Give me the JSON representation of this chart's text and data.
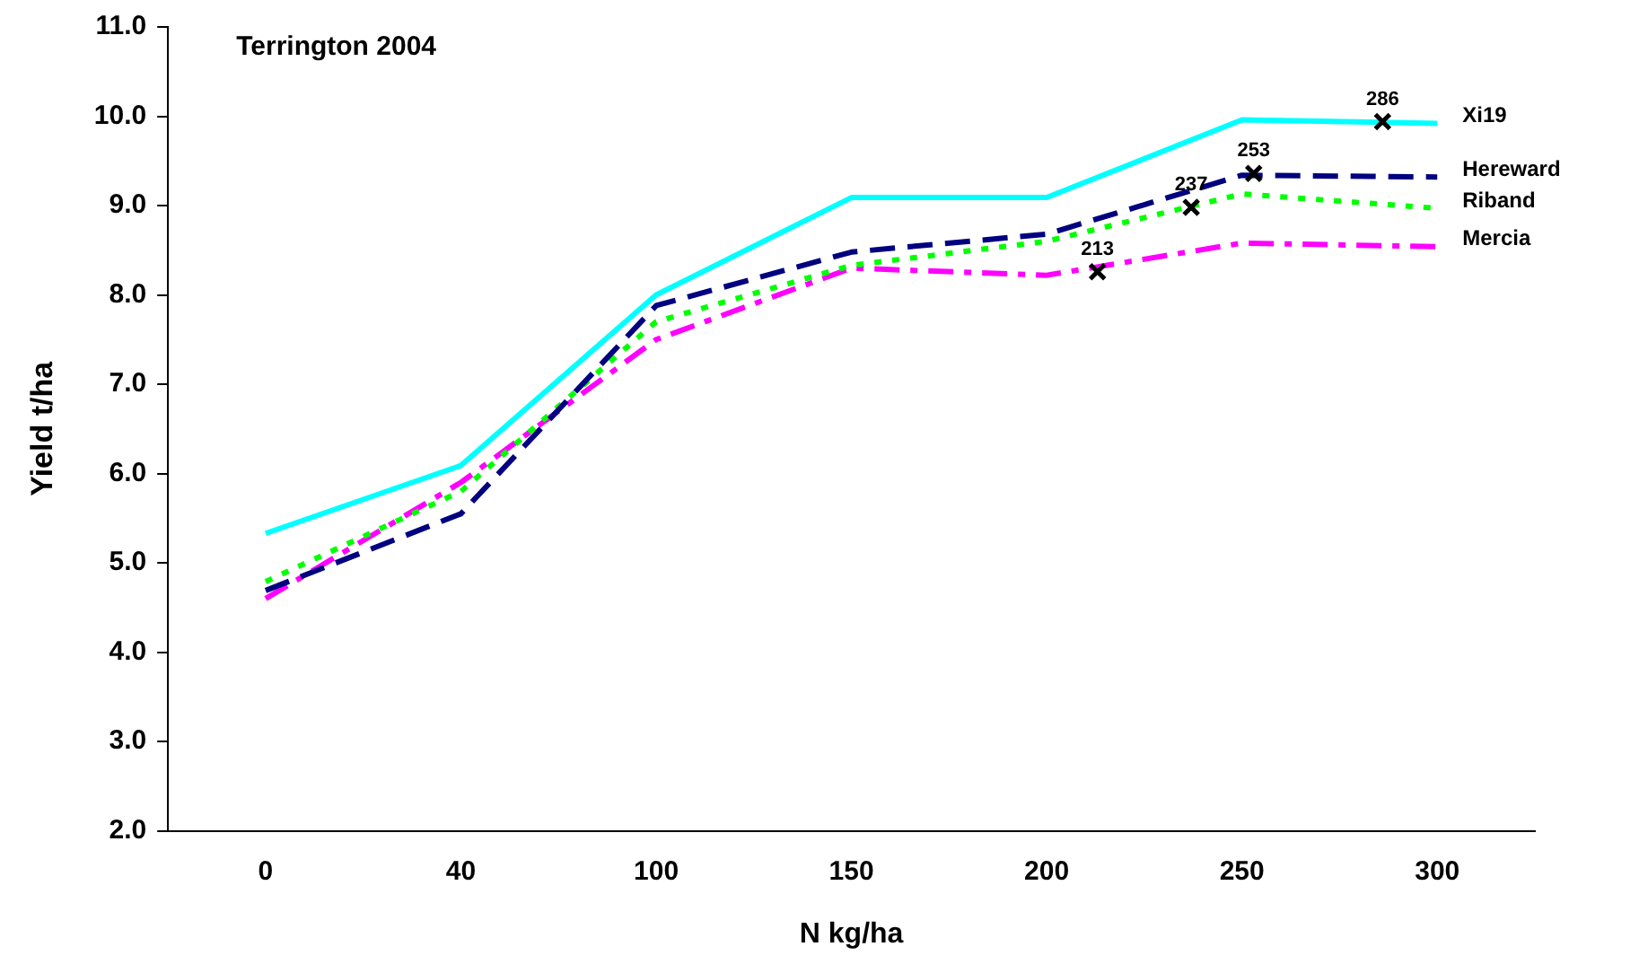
{
  "chart_data": {
    "type": "line",
    "title": "Terrington 2004",
    "xlabel": "N kg/ha",
    "ylabel": "Yield t/ha",
    "categories": [
      "0",
      "40",
      "100",
      "150",
      "200",
      "250",
      "300"
    ],
    "ylim": [
      2,
      11
    ],
    "yticks": [
      {
        "value": 2,
        "label": "2.0"
      },
      {
        "value": 3,
        "label": "3.0"
      },
      {
        "value": 4,
        "label": "4.0"
      },
      {
        "value": 5,
        "label": "5.0"
      },
      {
        "value": 6,
        "label": "6.0"
      },
      {
        "value": 7,
        "label": "7.0"
      },
      {
        "value": 8,
        "label": "8.0"
      },
      {
        "value": 9,
        "label": "9.0"
      },
      {
        "value": 10,
        "label": "10.0"
      },
      {
        "value": 11,
        "label": "11.0"
      }
    ],
    "grid": false,
    "legend": false,
    "marker": "none",
    "series": [
      {
        "name": "Xi19",
        "color": "#00ffff",
        "line_style": "solid",
        "values": [
          5.33,
          6.09,
          8.0,
          9.09,
          9.09,
          9.96,
          9.92
        ]
      },
      {
        "name": "Hereward",
        "color": "#000080",
        "line_style": "dashed",
        "values": [
          4.69,
          5.55,
          7.88,
          8.48,
          8.68,
          9.34,
          9.32
        ]
      },
      {
        "name": "Riband",
        "color": "#00ff00",
        "line_style": "dotted",
        "values": [
          4.79,
          5.8,
          7.7,
          8.33,
          8.6,
          9.13,
          8.97
        ]
      },
      {
        "name": "Mercia",
        "color": "#ff00ff",
        "line_style": "dashdot",
        "values": [
          4.6,
          5.9,
          7.5,
          8.3,
          8.22,
          8.58,
          8.54
        ]
      }
    ],
    "annotations": [
      {
        "text": "213",
        "y": 8.26
      },
      {
        "text": "237",
        "y": 8.98
      },
      {
        "text": "253",
        "y": 9.36
      },
      {
        "text": "286",
        "y": 9.94
      }
    ]
  }
}
